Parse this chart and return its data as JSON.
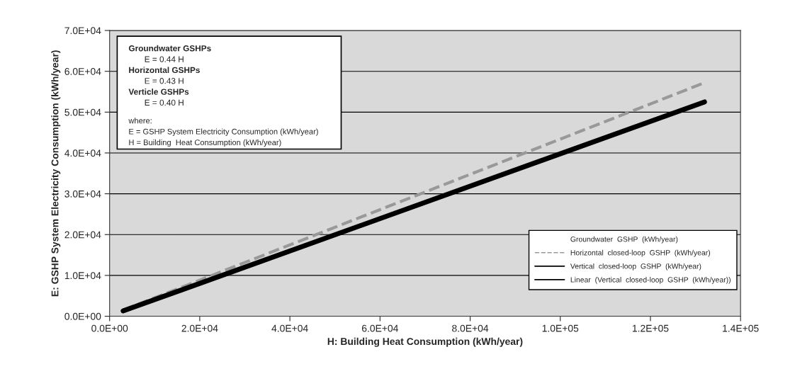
{
  "chart_data": {
    "type": "line",
    "xlabel": "H: Building Heat Consumption (kWh/year)",
    "ylabel": "E: GSHP System Electricity Consumption (kWh/year)",
    "x": [
      3000,
      132000
    ],
    "series": [
      {
        "name": "Groundwater  GSHP  (kWh/year)",
        "values": [
          null,
          null
        ]
      },
      {
        "name": "Horizontal  closed-loop  GSHP  (kWh/year)",
        "color": "#999999",
        "values": [
          1500,
          57200
        ],
        "line_style": "dashed"
      },
      {
        "name": "Vertical  closed-loop  GSHP  (kWh/year)",
        "color": "#000000",
        "values": [
          null,
          null
        ],
        "line_style": "solid"
      },
      {
        "name": "Linear  (Vertical  closed-loop  GSHP  (kWh/year))",
        "color": "#000000",
        "values": [
          1300,
          52500
        ],
        "line_style": "solid"
      }
    ],
    "xlim": [
      0,
      140000
    ],
    "ylim": [
      0,
      70000
    ],
    "xticks": [
      {
        "value": 0,
        "label": "0.0E+00"
      },
      {
        "value": 20000,
        "label": "2.0E+04"
      },
      {
        "value": 40000,
        "label": "4.0E+04"
      },
      {
        "value": 60000,
        "label": "6.0E+04"
      },
      {
        "value": 80000,
        "label": "8.0E+04"
      },
      {
        "value": 100000,
        "label": "1.0E+05"
      },
      {
        "value": 120000,
        "label": "1.2E+05"
      },
      {
        "value": 140000,
        "label": "1.4E+05"
      }
    ],
    "yticks": [
      {
        "value": 0,
        "label": "0.0E+00"
      },
      {
        "value": 10000,
        "label": "1.0E+04"
      },
      {
        "value": 20000,
        "label": "2.0E+04"
      },
      {
        "value": 30000,
        "label": "3.0E+04"
      },
      {
        "value": 40000,
        "label": "4.0E+04"
      },
      {
        "value": 50000,
        "label": "5.0E+04"
      },
      {
        "value": 60000,
        "label": "6.0E+04"
      },
      {
        "value": 70000,
        "label": "7.0E+04"
      }
    ],
    "grid": "y",
    "legend": "bottom right",
    "annotations": [
      "Groundwater GSHPs",
      "E = 0.44 H",
      "Horizontal GSHPs",
      "E = 0.43 H",
      "Verticle GSHPs",
      "E = 0.40 H",
      "where:",
      "E = GSHP System Electricity Consumption (kWh/year)",
      "H = Building  Heat Consumption (kWh/year)"
    ]
  }
}
